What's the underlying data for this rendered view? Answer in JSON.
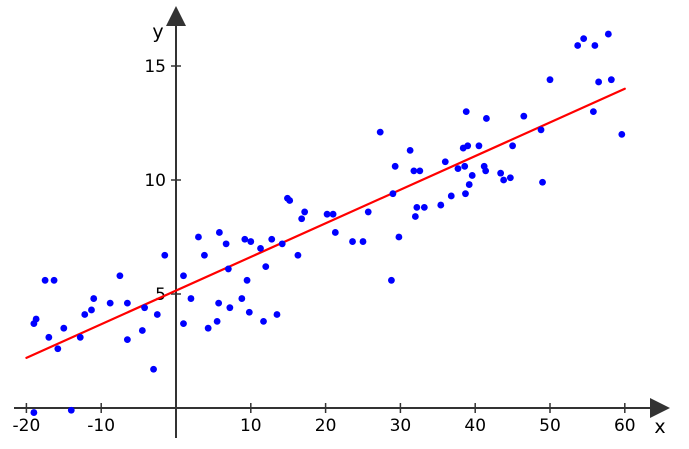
{
  "chart_data": {
    "type": "scatter",
    "xlabel": "x",
    "ylabel": "y",
    "xlim": [
      -21,
      65
    ],
    "ylim": [
      -1,
      17.5
    ],
    "x_ticks": [
      -20,
      -10,
      10,
      20,
      30,
      40,
      50,
      60
    ],
    "x_tick_labels": [
      "-20",
      "-10",
      "10",
      "20",
      "30",
      "40",
      "50",
      "60"
    ],
    "y_ticks": [
      5,
      10,
      15
    ],
    "y_tick_labels": [
      "5",
      "10",
      "15"
    ],
    "grid": false,
    "colors": {
      "points": "#0000ff",
      "trend": "#ff0000",
      "axes": "#333333"
    },
    "trend_line": {
      "x": [
        -20,
        60
      ],
      "y": [
        2.2,
        14.0
      ]
    },
    "points": [
      [
        -19,
        3.7
      ],
      [
        -18.7,
        3.9
      ],
      [
        -19,
        -0.2
      ],
      [
        -17.5,
        5.6
      ],
      [
        -17,
        3.1
      ],
      [
        -16.3,
        5.6
      ],
      [
        -15.8,
        2.6
      ],
      [
        -15,
        3.5
      ],
      [
        -14,
        -0.1
      ],
      [
        -12.8,
        3.1
      ],
      [
        -12.2,
        4.1
      ],
      [
        -11.3,
        4.3
      ],
      [
        -11,
        4.8
      ],
      [
        -8.8,
        4.6
      ],
      [
        -7.5,
        5.8
      ],
      [
        -6.5,
        3.0
      ],
      [
        -6.5,
        4.6
      ],
      [
        -4.5,
        3.4
      ],
      [
        -4.2,
        4.4
      ],
      [
        -3,
        1.7
      ],
      [
        -2.5,
        4.1
      ],
      [
        -1.5,
        6.7
      ],
      [
        1,
        3.7
      ],
      [
        1,
        5.8
      ],
      [
        2,
        4.8
      ],
      [
        3,
        7.5
      ],
      [
        3.8,
        6.7
      ],
      [
        4.3,
        3.5
      ],
      [
        5.5,
        3.8
      ],
      [
        5.7,
        4.6
      ],
      [
        5.8,
        7.7
      ],
      [
        6.7,
        7.2
      ],
      [
        7,
        6.1
      ],
      [
        7.2,
        4.4
      ],
      [
        8.8,
        4.8
      ],
      [
        9.2,
        7.4
      ],
      [
        9.5,
        5.6
      ],
      [
        9.8,
        4.2
      ],
      [
        10,
        7.3
      ],
      [
        11.3,
        7.0
      ],
      [
        11.7,
        3.8
      ],
      [
        12,
        6.2
      ],
      [
        12.8,
        7.4
      ],
      [
        13.5,
        4.1
      ],
      [
        14.2,
        7.2
      ],
      [
        14.9,
        9.2
      ],
      [
        15.2,
        9.1
      ],
      [
        16.3,
        6.7
      ],
      [
        16.8,
        8.3
      ],
      [
        17.2,
        8.6
      ],
      [
        20.2,
        8.5
      ],
      [
        21,
        8.5
      ],
      [
        21.3,
        7.7
      ],
      [
        23.6,
        7.3
      ],
      [
        25,
        7.3
      ],
      [
        25.7,
        8.6
      ],
      [
        27.3,
        12.1
      ],
      [
        28.8,
        5.6
      ],
      [
        29,
        9.4
      ],
      [
        29.3,
        10.6
      ],
      [
        29.8,
        7.5
      ],
      [
        31.3,
        11.3
      ],
      [
        31.8,
        10.4
      ],
      [
        32,
        8.4
      ],
      [
        32.2,
        8.8
      ],
      [
        32.6,
        10.4
      ],
      [
        33.2,
        8.8
      ],
      [
        35.4,
        8.9
      ],
      [
        36,
        10.8
      ],
      [
        36.8,
        9.3
      ],
      [
        37.7,
        10.5
      ],
      [
        38.4,
        11.4
      ],
      [
        38.6,
        10.6
      ],
      [
        38.7,
        9.4
      ],
      [
        38.8,
        13.0
      ],
      [
        39,
        11.5
      ],
      [
        39.2,
        9.8
      ],
      [
        39.6,
        10.2
      ],
      [
        40.5,
        11.5
      ],
      [
        41.2,
        10.6
      ],
      [
        41.4,
        10.4
      ],
      [
        41.5,
        12.7
      ],
      [
        43.4,
        10.3
      ],
      [
        43.8,
        10.0
      ],
      [
        44.7,
        10.1
      ],
      [
        45,
        11.5
      ],
      [
        46.5,
        12.8
      ],
      [
        48.8,
        12.2
      ],
      [
        49,
        9.9
      ],
      [
        50,
        14.4
      ],
      [
        53.7,
        15.9
      ],
      [
        54.5,
        16.2
      ],
      [
        55.8,
        13.0
      ],
      [
        56,
        15.9
      ],
      [
        56.5,
        14.3
      ],
      [
        57.8,
        16.4
      ],
      [
        58.2,
        14.4
      ],
      [
        59.6,
        12.0
      ]
    ]
  }
}
